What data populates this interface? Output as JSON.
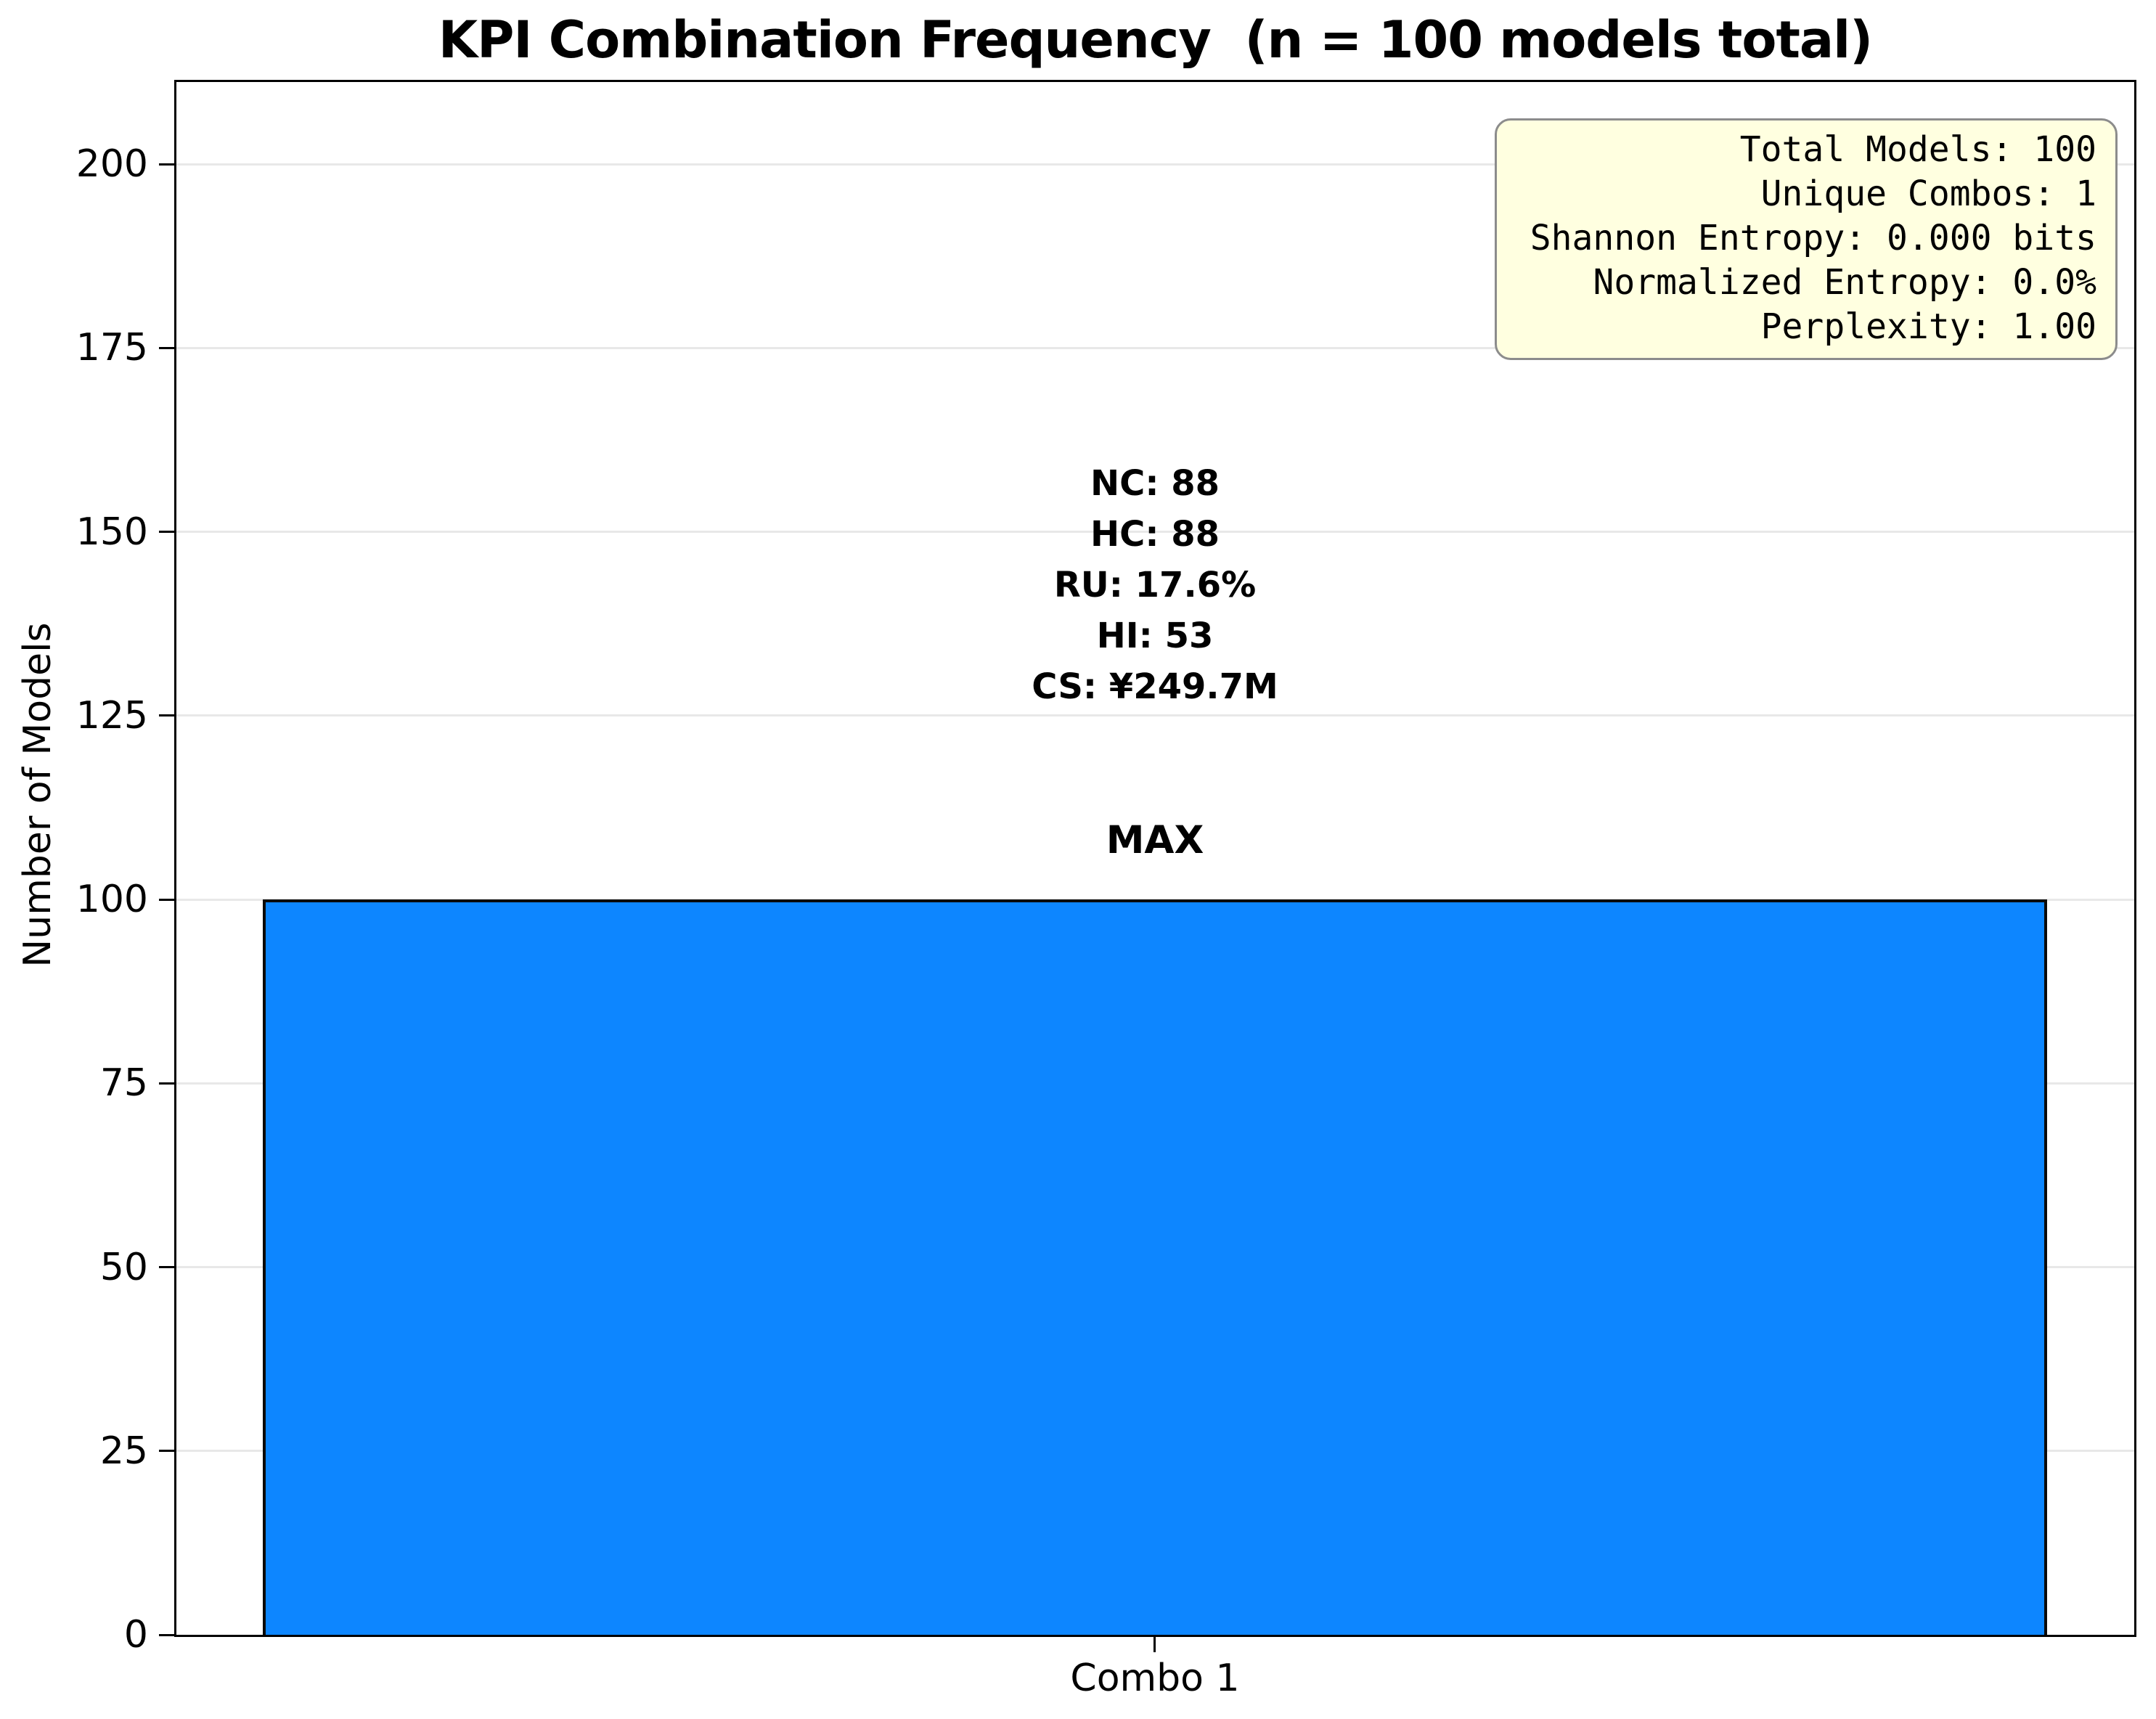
{
  "chart_data": {
    "type": "bar",
    "title": "KPI Combination Frequency  (n = 100 models total)",
    "xlabel": "",
    "ylabel": "Number of Models",
    "categories": [
      "Combo 1"
    ],
    "values": [
      100
    ],
    "yticks": [
      0,
      25,
      50,
      75,
      100,
      125,
      150,
      175,
      200
    ],
    "ylim": [
      0,
      211
    ],
    "grid": true,
    "legend": "none",
    "bar_label": "MAX",
    "annotation_lines": [
      "NC: 88",
      "HC: 88",
      "RU: 17.6%",
      "HI: 53",
      "CS: ¥249.7M"
    ],
    "stats_box": {
      "position": "top-right",
      "lines": [
        "Total Models: 100",
        "Unique Combos: 1",
        "Shannon Entropy: 0.000 bits",
        "Normalized Entropy: 0.0%",
        "Perplexity: 1.00"
      ]
    },
    "colors": {
      "bar_fill": "#0d86ff",
      "bar_edge": "#0a0a0a",
      "stats_bg": "#ffffe0",
      "stats_border": "#8c8c8c",
      "gridline": "#e8e8e8",
      "text": "#000000",
      "background": "#ffffff"
    }
  }
}
